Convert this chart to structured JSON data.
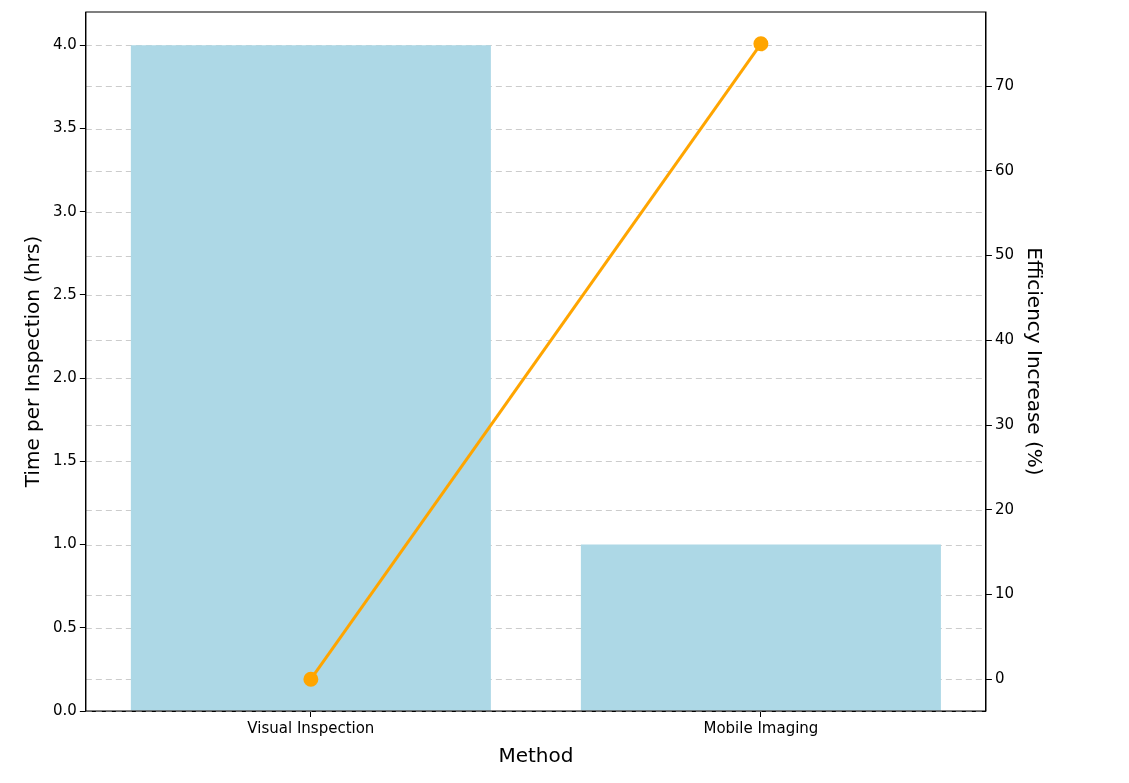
{
  "chart_data": {
    "type": "bar",
    "xlabel": "Method",
    "ylabel": "Time per Inspection (hrs)",
    "y2label": "Efficiency Increase (%)",
    "categories": [
      "Visual Inspection",
      "Mobile Imaging"
    ],
    "series": [
      {
        "color": "#add8e6",
        "values": [
          4,
          1
        ]
      },
      {
        "type": "line",
        "axis": "y2",
        "color": "#ffa500",
        "values": [
          0,
          75
        ]
      }
    ],
    "marker": "circle",
    "grid": "y",
    "legend": false,
    "ylim": [
      0,
      4.2
    ],
    "yticks": [
      {
        "value": 0,
        "label": "0.0"
      },
      {
        "value": 0.5,
        "label": "0.5"
      },
      {
        "value": 1,
        "label": "1.0"
      },
      {
        "value": 1.5,
        "label": "1.5"
      },
      {
        "value": 2,
        "label": "2.0"
      },
      {
        "value": 2.5,
        "label": "2.5"
      },
      {
        "value": 3,
        "label": "3.0"
      },
      {
        "value": 3.5,
        "label": "3.5"
      },
      {
        "value": 4,
        "label": "4.0"
      }
    ],
    "y2lim": [
      -3.75,
      78.75
    ],
    "y2ticks": [
      0,
      10,
      20,
      30,
      40,
      50,
      60,
      70
    ]
  }
}
